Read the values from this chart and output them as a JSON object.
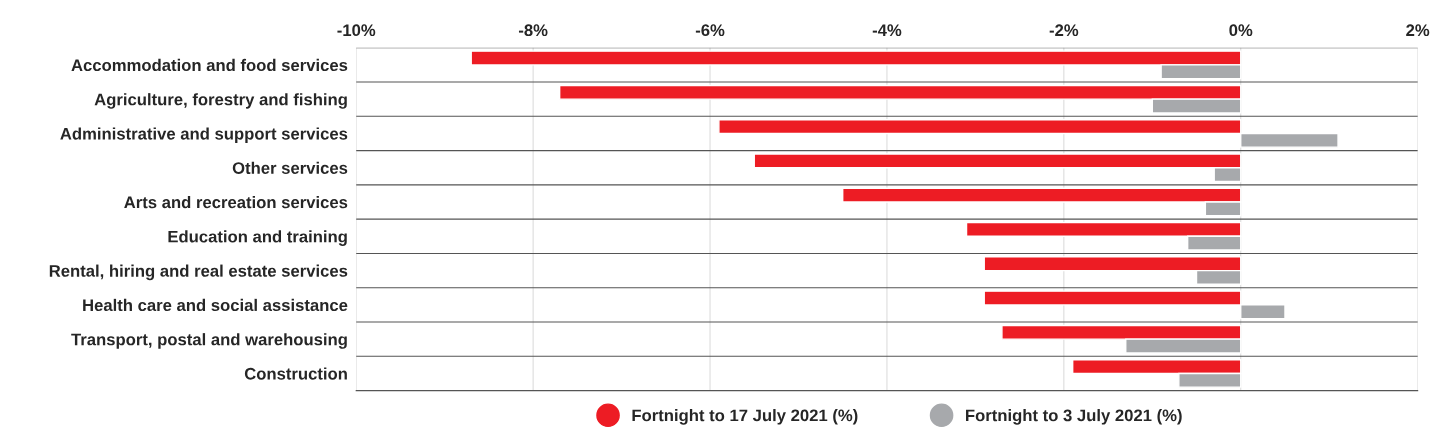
{
  "chart_data": {
    "type": "bar",
    "orientation": "horizontal",
    "categories": [
      "Accommodation and food services",
      "Agriculture, forestry and fishing",
      "Administrative and support services",
      "Other services",
      "Arts and recreation services",
      "Education and training",
      "Rental, hiring and real estate services",
      "Health care and social assistance",
      "Transport, postal and warehousing",
      "Construction"
    ],
    "series": [
      {
        "name": "Fortnight to 17 July 2021 (%)",
        "color": "#ed1c24",
        "values": [
          -8.7,
          -7.7,
          -5.9,
          -5.5,
          -4.5,
          -3.1,
          -2.9,
          -2.9,
          -2.7,
          -1.9
        ]
      },
      {
        "name": "Fortnight to 3 July 2021 (%)",
        "color": "#a7a9ac",
        "values": [
          -0.9,
          -1.0,
          1.1,
          -0.3,
          -0.4,
          -0.6,
          -0.5,
          0.5,
          -1.3,
          -0.7
        ]
      }
    ],
    "xlim": [
      -10,
      2
    ],
    "xticks": [
      {
        "value": -10,
        "label": "-10%"
      },
      {
        "value": -8,
        "label": "-8%"
      },
      {
        "value": -6,
        "label": "-6%"
      },
      {
        "value": -4,
        "label": "-4%"
      },
      {
        "value": -2,
        "label": "-2%"
      },
      {
        "value": 0,
        "label": "0%"
      },
      {
        "value": 2,
        "label": "2%"
      }
    ],
    "grid": true,
    "legend": "bottom",
    "marker": "circle"
  }
}
